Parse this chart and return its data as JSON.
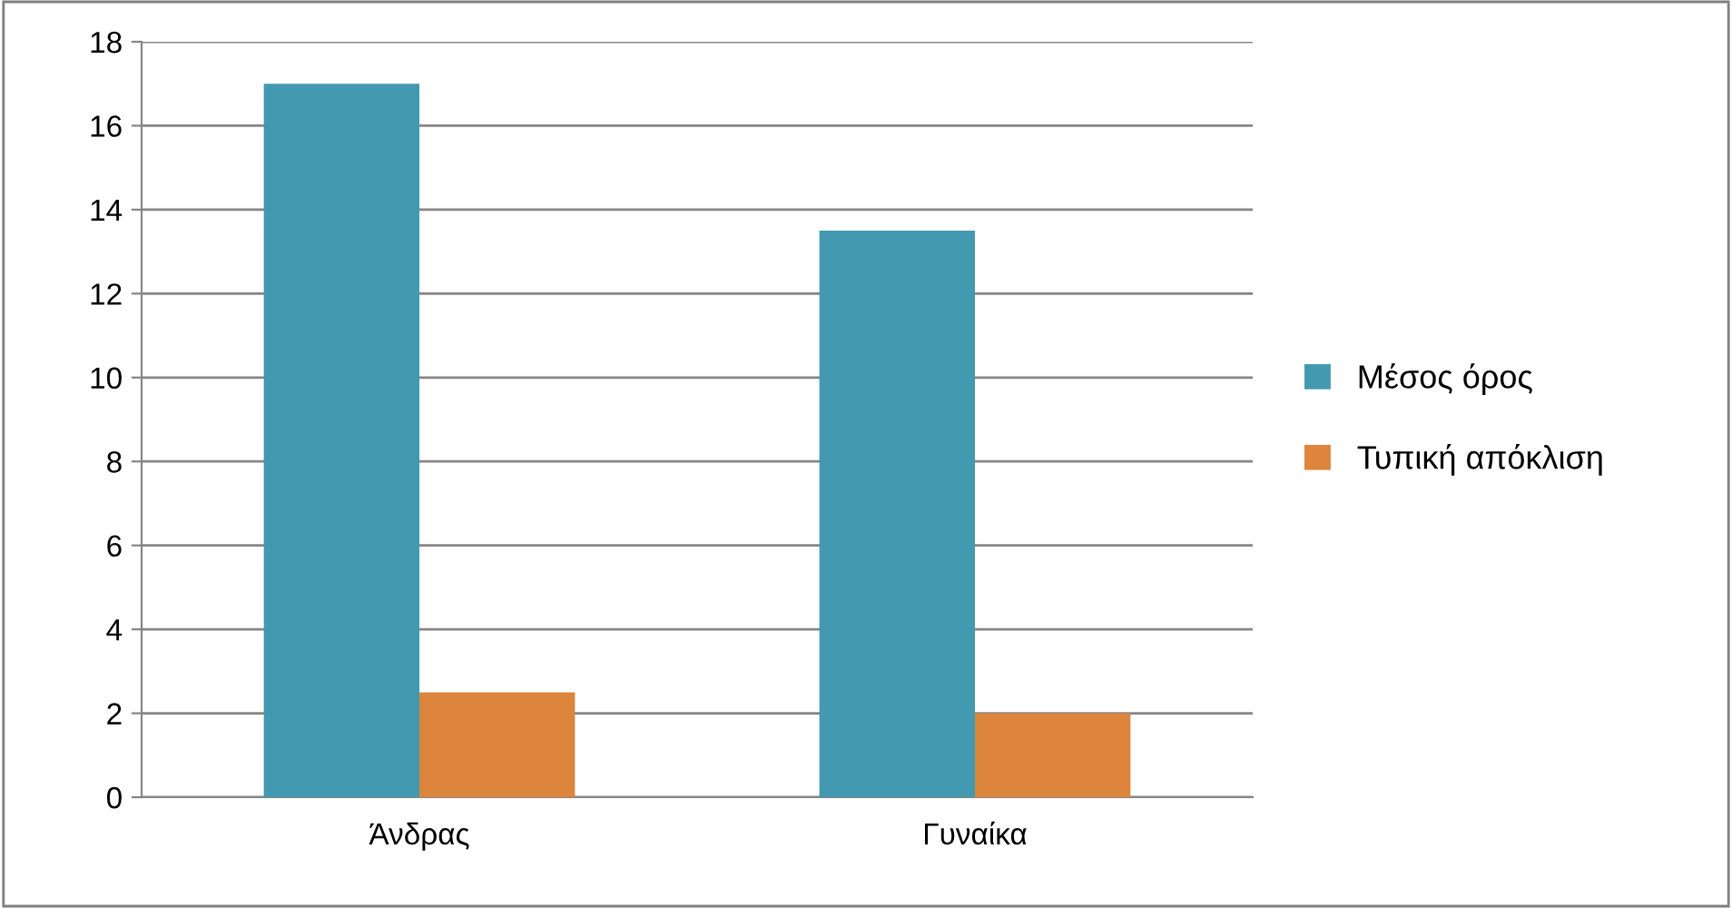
{
  "chart_data": {
    "type": "bar",
    "categories": [
      "Άνδρας",
      "Γυναίκα"
    ],
    "series": [
      {
        "name": "Μέσος όρος",
        "color": "#4299b0",
        "values": [
          17,
          13.5
        ]
      },
      {
        "name": "Τυπική απόκλιση",
        "color": "#dd843d",
        "values": [
          2.5,
          2
        ]
      }
    ],
    "ylim": [
      0,
      18
    ],
    "yticks": [
      0,
      2,
      4,
      6,
      8,
      10,
      12,
      14,
      16,
      18
    ],
    "grid": "y",
    "legend": "right"
  }
}
